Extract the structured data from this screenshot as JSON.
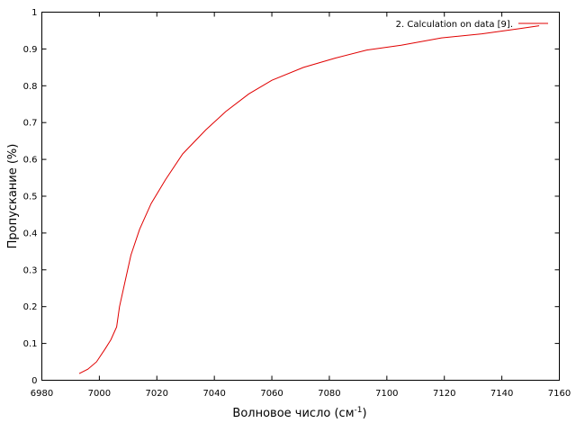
{
  "chart_data": {
    "type": "line",
    "xlabel": "Волновое число (см",
    "xlabel_sup": "-1",
    "xlabel_tail": ")",
    "ylabel": "Пропускание (%)",
    "xlim": [
      6980,
      7160
    ],
    "ylim": [
      0,
      1
    ],
    "x_ticks": [
      6980,
      7000,
      7020,
      7040,
      7060,
      7080,
      7100,
      7120,
      7140,
      7160
    ],
    "y_ticks": [
      0,
      0.1,
      0.2,
      0.3,
      0.4,
      0.5,
      0.6,
      0.7,
      0.8,
      0.9,
      1
    ],
    "x_tick_labels": [
      "6980",
      "7000",
      "7020",
      "7040",
      "7060",
      "7080",
      "7100",
      "7120",
      "7140",
      "7160"
    ],
    "y_tick_labels": [
      "0",
      "0.1",
      "0.2",
      "0.3",
      "0.4",
      "0.5",
      "0.6",
      "0.7",
      "0.8",
      "0.9",
      "1"
    ],
    "grid": false,
    "legend_position": "top-right",
    "series": [
      {
        "name": "2. Calculation on data [9].",
        "color": "#e00000",
        "x": [
          6993,
          6996,
          6999,
          7002,
          7004,
          7006,
          7007,
          7009,
          7011,
          7014,
          7018,
          7023,
          7029,
          7037,
          7044,
          7052,
          7060,
          7071,
          7082,
          7093,
          7105,
          7119,
          7133,
          7146,
          7153
        ],
        "y": [
          0.018,
          0.03,
          0.05,
          0.085,
          0.11,
          0.145,
          0.2,
          0.27,
          0.34,
          0.41,
          0.48,
          0.545,
          0.615,
          0.68,
          0.73,
          0.778,
          0.815,
          0.85,
          0.875,
          0.897,
          0.91,
          0.93,
          0.941,
          0.955,
          0.963
        ]
      }
    ]
  }
}
